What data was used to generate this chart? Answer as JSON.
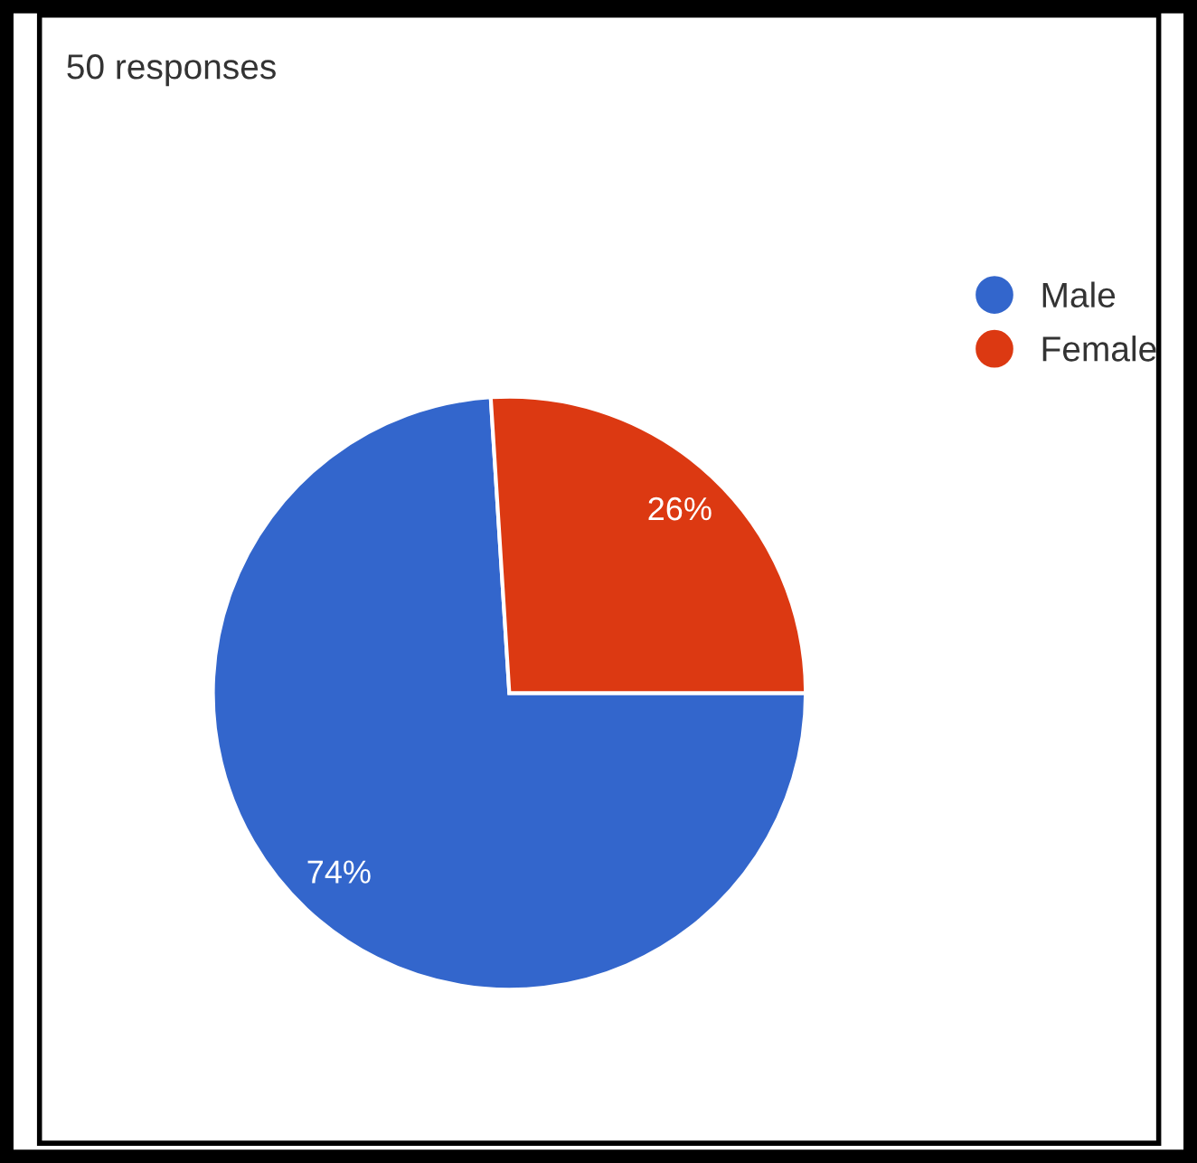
{
  "chart_data": {
    "type": "pie",
    "title": "50 responses",
    "categories": [
      "Male",
      "Female"
    ],
    "values": [
      74,
      26
    ],
    "colors": [
      "#3366cc",
      "#dc3912"
    ],
    "value_labels": [
      "74%",
      "26%"
    ],
    "legend": "right"
  }
}
